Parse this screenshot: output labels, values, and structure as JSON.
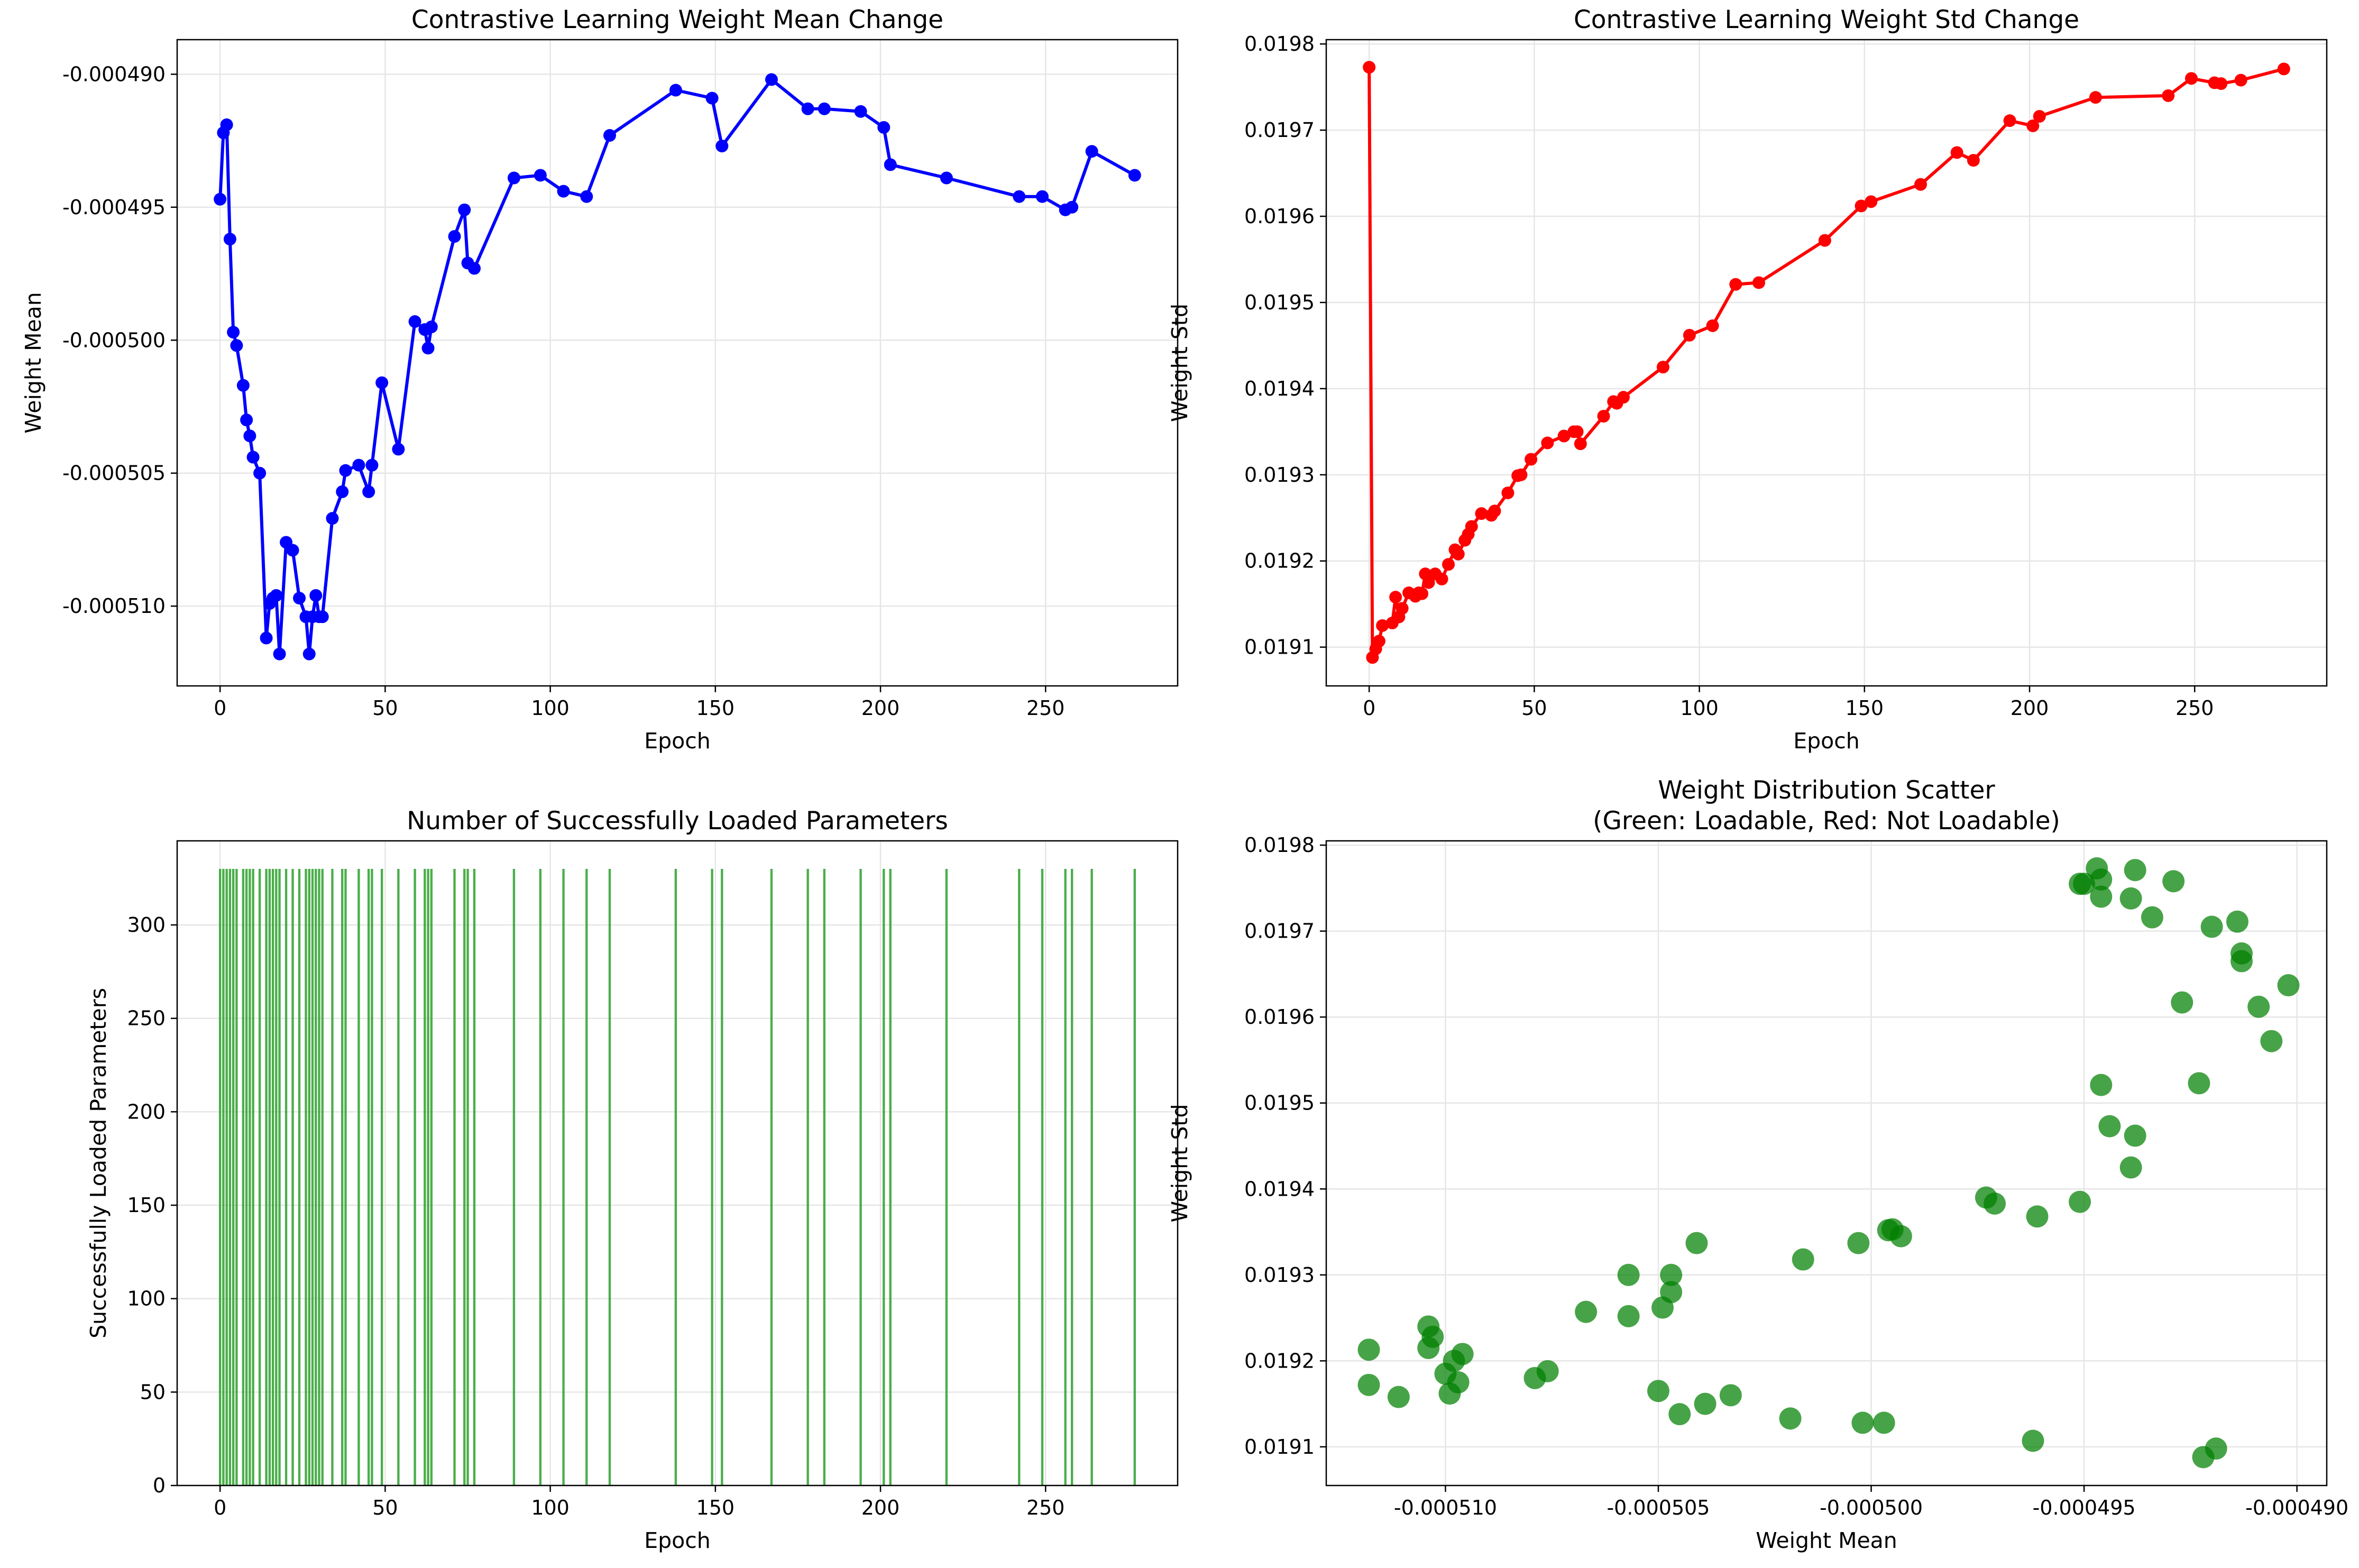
{
  "chart_data": [
    {
      "type": "line",
      "title": "Contrastive Learning Weight Mean Change",
      "xlabel": "Epoch",
      "ylabel": "Weight Mean",
      "xlim": [
        -13,
        290
      ],
      "ylim": [
        -0.000513,
        -0.0004887
      ],
      "xticks": [
        "0",
        "50",
        "100",
        "150",
        "200",
        "250"
      ],
      "yticks": [
        "-0.000490",
        "-0.000495",
        "-0.000500",
        "-0.000505",
        "-0.000510"
      ],
      "grid": true,
      "color": "#0000ff",
      "series": [
        {
          "x": [
            0,
            1,
            2,
            3,
            4,
            5,
            7,
            8,
            9,
            10,
            12,
            14,
            15,
            16,
            17,
            18,
            20,
            22,
            24,
            26,
            27,
            28,
            29,
            30,
            31,
            34,
            37,
            38,
            42,
            45,
            46,
            49,
            54,
            59,
            62,
            63,
            64,
            71,
            74,
            75,
            77,
            89,
            97,
            104,
            111,
            118,
            138,
            149,
            152,
            167,
            178,
            183,
            194,
            201,
            203,
            220,
            242,
            249,
            256,
            258,
            264,
            277
          ],
          "y": [
            -0.0004947,
            -0.0004922,
            -0.0004919,
            -0.0004962,
            -0.0004997,
            -0.0005002,
            -0.0005017,
            -0.000503,
            -0.0005036,
            -0.0005044,
            -0.000505,
            -0.0005112,
            -0.0005099,
            -0.0005097,
            -0.0005096,
            -0.0005118,
            -0.0005076,
            -0.0005079,
            -0.0005097,
            -0.0005104,
            -0.0005118,
            -0.0005104,
            -0.0005096,
            -0.0005104,
            -0.0005104,
            -0.0005067,
            -0.0005057,
            -0.0005049,
            -0.0005047,
            -0.0005057,
            -0.0005047,
            -0.0005016,
            -0.0005041,
            -0.0004993,
            -0.0004996,
            -0.0005003,
            -0.0004995,
            -0.0004961,
            -0.0004951,
            -0.0004971,
            -0.0004973,
            -0.0004939,
            -0.0004938,
            -0.0004944,
            -0.0004946,
            -0.0004923,
            -0.0004906,
            -0.0004909,
            -0.0004927,
            -0.0004902,
            -0.0004913,
            -0.0004913,
            -0.0004914,
            -0.000492,
            -0.0004934,
            -0.0004939,
            -0.0004946,
            -0.0004946,
            -0.0004951,
            -0.000495,
            -0.0004929,
            -0.0004938
          ]
        }
      ]
    },
    {
      "type": "line",
      "title": "Contrastive Learning Weight Std Change",
      "xlabel": "Epoch",
      "ylabel": "Weight Std",
      "xlim": [
        -13,
        290
      ],
      "ylim": [
        0.019055,
        0.019805
      ],
      "xticks": [
        "0",
        "50",
        "100",
        "150",
        "200",
        "250"
      ],
      "yticks": [
        "0.0191",
        "0.0192",
        "0.0193",
        "0.0194",
        "0.0195",
        "0.0196",
        "0.0197",
        "0.0198"
      ],
      "grid": true,
      "color": "#ff0000",
      "series": [
        {
          "x": [
            0,
            1,
            2,
            3,
            4,
            7,
            8,
            9,
            10,
            12,
            14,
            15,
            16,
            17,
            18,
            20,
            22,
            24,
            26,
            27,
            29,
            30,
            31,
            34,
            37,
            38,
            42,
            45,
            46,
            49,
            54,
            59,
            62,
            63,
            64,
            71,
            74,
            75,
            77,
            89,
            97,
            104,
            111,
            118,
            138,
            149,
            152,
            167,
            178,
            183,
            194,
            201,
            203,
            220,
            242,
            249,
            256,
            258,
            264,
            277
          ],
          "y": [
            0.019773,
            0.019088,
            0.019098,
            0.019107,
            0.019125,
            0.019128,
            0.019158,
            0.019135,
            0.019145,
            0.019163,
            0.019159,
            0.019163,
            0.019162,
            0.019185,
            0.019175,
            0.019185,
            0.019179,
            0.019196,
            0.019213,
            0.019208,
            0.019224,
            0.019231,
            0.01924,
            0.019255,
            0.019253,
            0.019258,
            0.019279,
            0.019299,
            0.0193,
            0.019318,
            0.019337,
            0.019345,
            0.01935,
            0.01935,
            0.019336,
            0.019368,
            0.019385,
            0.019383,
            0.01939,
            0.019425,
            0.019462,
            0.019473,
            0.019521,
            0.019523,
            0.019572,
            0.019612,
            0.019617,
            0.019637,
            0.019674,
            0.019665,
            0.019711,
            0.019705,
            0.019716,
            0.019738,
            0.01974,
            0.01976,
            0.019755,
            0.019754,
            0.019758,
            0.019771
          ]
        }
      ]
    },
    {
      "type": "bar",
      "title": "Number of Successfully Loaded Parameters",
      "xlabel": "Epoch",
      "ylabel": "Successfully Loaded Parameters",
      "xlim": [
        -13,
        290
      ],
      "ylim": [
        0,
        345
      ],
      "xticks": [
        "0",
        "50",
        "100",
        "150",
        "200",
        "250"
      ],
      "yticks": [
        "0",
        "50",
        "100",
        "150",
        "200",
        "250",
        "300"
      ],
      "grid": true,
      "color": "#2ca02c",
      "bar_width_epochs": 0.7,
      "x": [
        0,
        1,
        2,
        3,
        4,
        5,
        7,
        8,
        9,
        10,
        12,
        14,
        15,
        16,
        17,
        18,
        20,
        22,
        24,
        26,
        27,
        28,
        29,
        30,
        31,
        34,
        37,
        38,
        42,
        45,
        46,
        49,
        54,
        59,
        62,
        63,
        64,
        71,
        74,
        75,
        77,
        89,
        97,
        104,
        111,
        118,
        138,
        149,
        152,
        167,
        178,
        183,
        194,
        201,
        203,
        220,
        242,
        249,
        256,
        258,
        264,
        277
      ],
      "value": 330
    },
    {
      "type": "scatter",
      "title": "Weight Distribution Scatter",
      "subtitle": "(Green: Loadable, Red: Not Loadable)",
      "xlabel": "Weight Mean",
      "ylabel": "Weight Std",
      "xlim": [
        -0.0005128,
        -0.0004893
      ],
      "ylim": [
        0.019055,
        0.019805
      ],
      "xticks": [
        "-0.000510",
        "-0.000505",
        "-0.000500",
        "-0.000495",
        "-0.000490"
      ],
      "yticks": [
        "0.0191",
        "0.0192",
        "0.0193",
        "0.0194",
        "0.0195",
        "0.0196",
        "0.0197",
        "0.0198"
      ],
      "grid": true,
      "color": "#008000",
      "points": [
        [
          -0.0005118,
          0.019213
        ],
        [
          -0.0005118,
          0.019172
        ],
        [
          -0.0005111,
          0.019158
        ],
        [
          -0.0005104,
          0.01924
        ],
        [
          -0.0005104,
          0.019215
        ],
        [
          -0.0005103,
          0.019228
        ],
        [
          -0.00051,
          0.019185
        ],
        [
          -0.0005099,
          0.019162
        ],
        [
          -0.0005098,
          0.0192
        ],
        [
          -0.0005097,
          0.019175
        ],
        [
          -0.0005096,
          0.019208
        ],
        [
          -0.0005079,
          0.01918
        ],
        [
          -0.0005076,
          0.019188
        ],
        [
          -0.0005067,
          0.019257
        ],
        [
          -0.0005057,
          0.0193
        ],
        [
          -0.0005057,
          0.019252
        ],
        [
          -0.000505,
          0.019165
        ],
        [
          -0.0005049,
          0.019262
        ],
        [
          -0.0005047,
          0.01928
        ],
        [
          -0.0005047,
          0.0193
        ],
        [
          -0.0005045,
          0.019138
        ],
        [
          -0.0005041,
          0.019337
        ],
        [
          -0.0005039,
          0.01915
        ],
        [
          -0.0005033,
          0.01916
        ],
        [
          -0.0005019,
          0.019133
        ],
        [
          -0.0005016,
          0.019318
        ],
        [
          -0.0005003,
          0.019337
        ],
        [
          -0.0005002,
          0.019128
        ],
        [
          -0.0004997,
          0.019128
        ],
        [
          -0.0004996,
          0.019352
        ],
        [
          -0.0004995,
          0.019353
        ],
        [
          -0.0004993,
          0.019345
        ],
        [
          -0.0004973,
          0.01939
        ],
        [
          -0.0004971,
          0.019383
        ],
        [
          -0.0004962,
          0.019107
        ],
        [
          -0.0004961,
          0.019368
        ],
        [
          -0.0004951,
          0.019385
        ],
        [
          -0.0004951,
          0.019755
        ],
        [
          -0.000495,
          0.019755
        ],
        [
          -0.0004947,
          0.019773
        ],
        [
          -0.0004946,
          0.01976
        ],
        [
          -0.0004946,
          0.019521
        ],
        [
          -0.0004946,
          0.01974
        ],
        [
          -0.0004944,
          0.019473
        ],
        [
          -0.0004939,
          0.019425
        ],
        [
          -0.0004939,
          0.019738
        ],
        [
          -0.0004938,
          0.019462
        ],
        [
          -0.0004938,
          0.019771
        ],
        [
          -0.0004934,
          0.019716
        ],
        [
          -0.0004929,
          0.019758
        ],
        [
          -0.0004927,
          0.019617
        ],
        [
          -0.0004923,
          0.019523
        ],
        [
          -0.0004922,
          0.019088
        ],
        [
          -0.0004919,
          0.019098
        ],
        [
          -0.000492,
          0.019705
        ],
        [
          -0.0004914,
          0.019711
        ],
        [
          -0.0004913,
          0.019674
        ],
        [
          -0.0004913,
          0.019665
        ],
        [
          -0.0004909,
          0.019612
        ],
        [
          -0.0004906,
          0.019572
        ],
        [
          -0.0004902,
          0.019637
        ]
      ]
    }
  ]
}
